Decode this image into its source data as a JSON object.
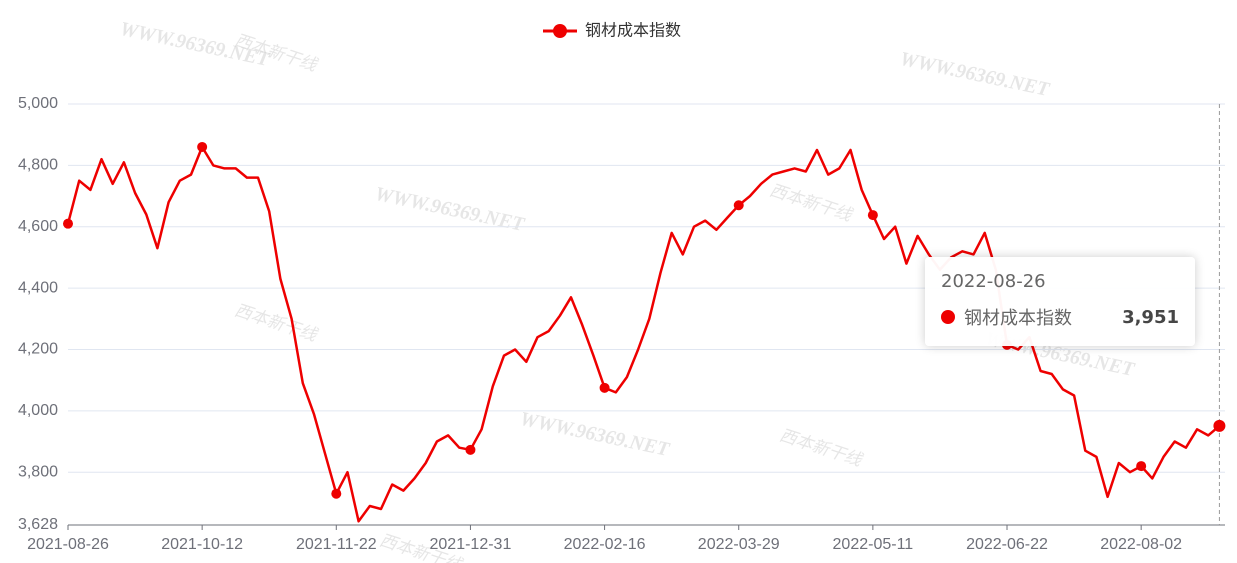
{
  "chart_data": {
    "type": "line",
    "watermarks": [
      "WWW.96369.NET",
      "西本新干线"
    ],
    "categories": [
      "2021-08-26",
      null,
      null,
      null,
      null,
      null,
      null,
      null,
      null,
      null,
      null,
      null,
      "2021-10-12",
      null,
      null,
      null,
      null,
      null,
      null,
      null,
      null,
      null,
      null,
      null,
      "2021-11-22",
      null,
      null,
      null,
      null,
      null,
      null,
      null,
      null,
      null,
      null,
      null,
      "2021-12-31",
      null,
      null,
      null,
      null,
      null,
      null,
      null,
      null,
      null,
      null,
      null,
      "2022-02-16",
      null,
      null,
      null,
      null,
      null,
      null,
      null,
      null,
      null,
      null,
      null,
      "2022-03-29",
      null,
      null,
      null,
      null,
      null,
      null,
      null,
      null,
      null,
      null,
      null,
      "2022-05-11",
      null,
      null,
      null,
      null,
      null,
      null,
      null,
      null,
      null,
      null,
      null,
      "2022-06-22",
      null,
      null,
      null,
      null,
      null,
      null,
      null,
      null,
      null,
      null,
      null,
      "2022-08-02",
      null,
      null,
      null,
      null,
      null,
      null,
      "2022-08-26"
    ],
    "series": [
      {
        "name": "钢材成本指数",
        "color": "#ee0000",
        "values": [
          4610,
          4750,
          4720,
          4820,
          4740,
          4810,
          4710,
          4640,
          4530,
          4680,
          4750,
          4770,
          4860,
          4800,
          4790,
          4790,
          4760,
          4760,
          4650,
          4430,
          4300,
          4090,
          3990,
          3860,
          3730,
          3800,
          3640,
          3690,
          3680,
          3760,
          3740,
          3780,
          3830,
          3900,
          3920,
          3880,
          3873,
          3940,
          4080,
          4180,
          4200,
          4160,
          4240,
          4260,
          4310,
          4370,
          4280,
          4180,
          4075,
          4060,
          4110,
          4200,
          4300,
          4450,
          4580,
          4510,
          4600,
          4620,
          4590,
          4630,
          4670,
          4700,
          4740,
          4770,
          4780,
          4790,
          4780,
          4850,
          4770,
          4790,
          4850,
          4720,
          4638,
          4560,
          4600,
          4480,
          4570,
          4510,
          4460,
          4500,
          4520,
          4510,
          4580,
          4460,
          4215,
          4200,
          4240,
          4130,
          4120,
          4070,
          4050,
          3870,
          3850,
          3720,
          3830,
          3800,
          3820,
          3780,
          3850,
          3900,
          3880,
          3940,
          3920,
          3951
        ],
        "value_labels": [
          null,
          null,
          null,
          null,
          null,
          null,
          null,
          null,
          null,
          null,
          null,
          null,
          null,
          null,
          null,
          null,
          null,
          null,
          null,
          null,
          null,
          null,
          null,
          null,
          null,
          null,
          null,
          null,
          null,
          null,
          null,
          null,
          null,
          null,
          null,
          null,
          null,
          null,
          null,
          null,
          null,
          null,
          null,
          null,
          null,
          null,
          null,
          null,
          null,
          null,
          null,
          null,
          null,
          null,
          null,
          null,
          null,
          null,
          null,
          null,
          null,
          null,
          null,
          null,
          null,
          null,
          null,
          null,
          null,
          null,
          null,
          null,
          null,
          null,
          null,
          null,
          null,
          null,
          null,
          null,
          null,
          null,
          null,
          null,
          null,
          null,
          null,
          null,
          null,
          null,
          null,
          null,
          null,
          null,
          null,
          null,
          null,
          null,
          null,
          null,
          null,
          null,
          null,
          "3,951"
        ]
      }
    ],
    "ylim": [
      3628,
      5000
    ],
    "yticks": [
      {
        "value": 3628,
        "label": "3,628"
      },
      {
        "value": 3800,
        "label": "3,800"
      },
      {
        "value": 4000,
        "label": "4,000"
      },
      {
        "value": 4200,
        "label": "4,200"
      },
      {
        "value": 4400,
        "label": "4,400"
      },
      {
        "value": 4600,
        "label": "4,600"
      },
      {
        "value": 4800,
        "label": "4,800"
      },
      {
        "value": 5000,
        "label": "5,000"
      }
    ],
    "grid": true,
    "legend": "top",
    "tooltip_index": 103
  }
}
